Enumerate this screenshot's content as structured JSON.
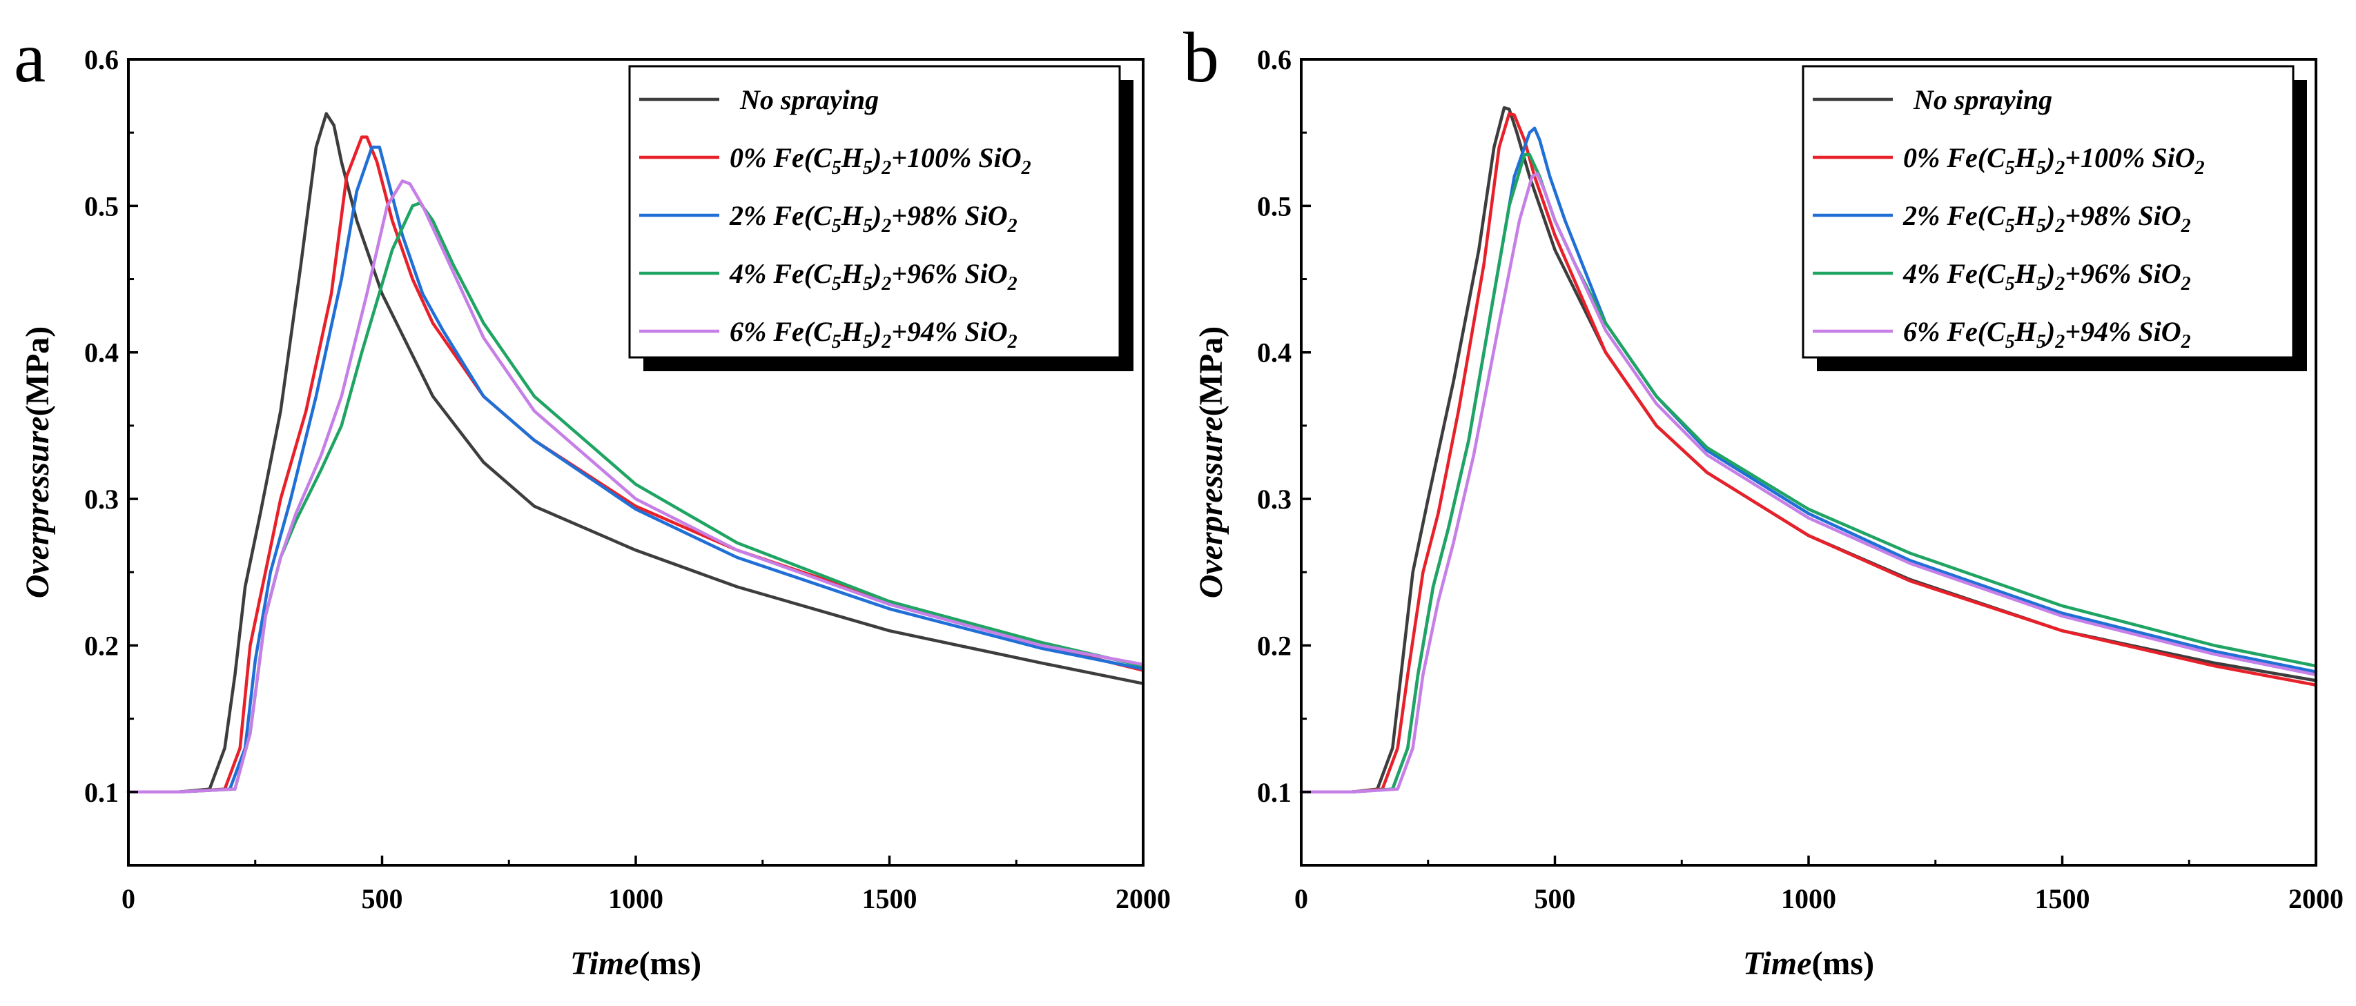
{
  "chart_data": [
    {
      "type": "line",
      "panel_label": "a",
      "xlabel": {
        "italic": "Time",
        "unit": "(ms)"
      },
      "ylabel": {
        "italic": "Overpressure",
        "unit": "(MPa)"
      },
      "xlim": [
        0,
        2000
      ],
      "ylim": [
        0.05,
        0.6
      ],
      "xticks": [
        0,
        500,
        1000,
        1500,
        2000
      ],
      "yticks": [
        0.1,
        0.2,
        0.3,
        0.4,
        0.5,
        0.6
      ],
      "grid": false,
      "legend_position": "top-right",
      "series": [
        {
          "name": "No spraying",
          "color": "#3d3d3d",
          "x": [
            0,
            100,
            160,
            190,
            210,
            230,
            260,
            300,
            340,
            370,
            390,
            405,
            420,
            450,
            500,
            600,
            700,
            800,
            1000,
            1200,
            1500,
            1800,
            2000
          ],
          "y": [
            0.1,
            0.1,
            0.102,
            0.13,
            0.18,
            0.24,
            0.29,
            0.36,
            0.46,
            0.54,
            0.563,
            0.555,
            0.53,
            0.49,
            0.44,
            0.37,
            0.325,
            0.295,
            0.265,
            0.24,
            0.21,
            0.188,
            0.174
          ]
        },
        {
          "name": "0% Fe(C5H5)2+100% SiO2",
          "color": "#e8202a",
          "x": [
            0,
            100,
            190,
            220,
            240,
            270,
            300,
            350,
            400,
            430,
            460,
            470,
            490,
            520,
            560,
            600,
            700,
            800,
            1000,
            1200,
            1500,
            1800,
            2000
          ],
          "y": [
            0.1,
            0.1,
            0.102,
            0.13,
            0.2,
            0.25,
            0.3,
            0.36,
            0.44,
            0.52,
            0.547,
            0.547,
            0.53,
            0.49,
            0.45,
            0.42,
            0.37,
            0.34,
            0.295,
            0.265,
            0.23,
            0.2,
            0.183
          ]
        },
        {
          "name": "2% Fe(C5H5)2+98% SiO2",
          "color": "#1f6fd6",
          "x": [
            0,
            100,
            200,
            230,
            250,
            280,
            320,
            370,
            420,
            450,
            480,
            495,
            510,
            540,
            580,
            620,
            700,
            800,
            1000,
            1200,
            1500,
            1800,
            2000
          ],
          "y": [
            0.1,
            0.1,
            0.102,
            0.13,
            0.19,
            0.25,
            0.3,
            0.37,
            0.45,
            0.51,
            0.54,
            0.54,
            0.52,
            0.48,
            0.44,
            0.415,
            0.37,
            0.34,
            0.293,
            0.26,
            0.225,
            0.198,
            0.184
          ]
        },
        {
          "name": "4% Fe(C5H5)2+96% SiO2",
          "color": "#1fa463",
          "x": [
            0,
            100,
            210,
            240,
            270,
            300,
            330,
            380,
            420,
            460,
            520,
            560,
            575,
            600,
            640,
            700,
            800,
            1000,
            1200,
            1500,
            1800,
            2000
          ],
          "y": [
            0.1,
            0.1,
            0.102,
            0.14,
            0.22,
            0.26,
            0.285,
            0.32,
            0.35,
            0.4,
            0.47,
            0.5,
            0.502,
            0.49,
            0.46,
            0.42,
            0.37,
            0.31,
            0.27,
            0.23,
            0.202,
            0.186
          ]
        },
        {
          "name": "6% Fe(C5H5)2+94% SiO2",
          "color": "#c67fe6",
          "x": [
            0,
            100,
            210,
            240,
            270,
            300,
            330,
            380,
            420,
            470,
            510,
            540,
            555,
            580,
            620,
            700,
            800,
            1000,
            1200,
            1500,
            1800,
            2000
          ],
          "y": [
            0.1,
            0.1,
            0.102,
            0.14,
            0.22,
            0.26,
            0.29,
            0.33,
            0.37,
            0.44,
            0.5,
            0.517,
            0.515,
            0.5,
            0.47,
            0.41,
            0.36,
            0.3,
            0.265,
            0.228,
            0.2,
            0.187
          ]
        }
      ]
    },
    {
      "type": "line",
      "panel_label": "b",
      "xlabel": {
        "italic": "Time",
        "unit": "(ms)"
      },
      "ylabel": {
        "italic": "Overpressure",
        "unit": "(MPa)"
      },
      "xlim": [
        0,
        2000
      ],
      "ylim": [
        0.05,
        0.6
      ],
      "xticks": [
        0,
        500,
        1000,
        1500,
        2000
      ],
      "yticks": [
        0.1,
        0.2,
        0.3,
        0.4,
        0.5,
        0.6
      ],
      "grid": false,
      "legend_position": "top-right",
      "series": [
        {
          "name": "No spraying",
          "color": "#3d3d3d",
          "x": [
            0,
            100,
            150,
            180,
            200,
            220,
            250,
            300,
            350,
            380,
            400,
            410,
            425,
            450,
            500,
            600,
            700,
            800,
            1000,
            1200,
            1500,
            1800,
            2000
          ],
          "y": [
            0.1,
            0.1,
            0.102,
            0.13,
            0.19,
            0.25,
            0.3,
            0.38,
            0.47,
            0.54,
            0.567,
            0.566,
            0.55,
            0.52,
            0.47,
            0.4,
            0.35,
            0.318,
            0.275,
            0.245,
            0.21,
            0.188,
            0.176
          ]
        },
        {
          "name": "0% Fe(C5H5)2+100% SiO2",
          "color": "#e8202a",
          "x": [
            0,
            100,
            160,
            190,
            210,
            240,
            270,
            310,
            360,
            390,
            410,
            420,
            440,
            460,
            500,
            600,
            700,
            800,
            1000,
            1200,
            1500,
            1800,
            2000
          ],
          "y": [
            0.1,
            0.1,
            0.102,
            0.13,
            0.18,
            0.25,
            0.29,
            0.36,
            0.46,
            0.54,
            0.563,
            0.562,
            0.545,
            0.52,
            0.48,
            0.4,
            0.35,
            0.318,
            0.275,
            0.244,
            0.21,
            0.186,
            0.173
          ]
        },
        {
          "name": "2% Fe(C5H5)2+98% SiO2",
          "color": "#1f6fd6",
          "x": [
            0,
            100,
            180,
            210,
            230,
            260,
            290,
            330,
            380,
            420,
            450,
            460,
            470,
            490,
            520,
            600,
            700,
            800,
            1000,
            1200,
            1500,
            1800,
            2000
          ],
          "y": [
            0.1,
            0.1,
            0.102,
            0.13,
            0.18,
            0.24,
            0.28,
            0.34,
            0.44,
            0.52,
            0.55,
            0.553,
            0.545,
            0.52,
            0.49,
            0.42,
            0.37,
            0.333,
            0.29,
            0.258,
            0.222,
            0.196,
            0.182
          ]
        },
        {
          "name": "4% Fe(C5H5)2+96% SiO2",
          "color": "#1fa463",
          "x": [
            0,
            100,
            180,
            210,
            230,
            260,
            290,
            330,
            380,
            410,
            440,
            450,
            470,
            500,
            540,
            600,
            700,
            800,
            1000,
            1200,
            1500,
            1800,
            2000
          ],
          "y": [
            0.1,
            0.1,
            0.102,
            0.13,
            0.18,
            0.24,
            0.28,
            0.34,
            0.44,
            0.5,
            0.535,
            0.535,
            0.52,
            0.49,
            0.46,
            0.42,
            0.37,
            0.335,
            0.293,
            0.263,
            0.227,
            0.2,
            0.186
          ]
        },
        {
          "name": "6% Fe(C5H5)2+94% SiO2",
          "color": "#c67fe6",
          "x": [
            0,
            100,
            190,
            220,
            240,
            270,
            300,
            340,
            390,
            430,
            455,
            465,
            480,
            500,
            540,
            600,
            700,
            800,
            1000,
            1200,
            1500,
            1800,
            2000
          ],
          "y": [
            0.1,
            0.1,
            0.102,
            0.13,
            0.18,
            0.23,
            0.27,
            0.33,
            0.42,
            0.49,
            0.52,
            0.522,
            0.51,
            0.49,
            0.46,
            0.415,
            0.365,
            0.33,
            0.287,
            0.256,
            0.22,
            0.194,
            0.18
          ]
        }
      ]
    }
  ]
}
